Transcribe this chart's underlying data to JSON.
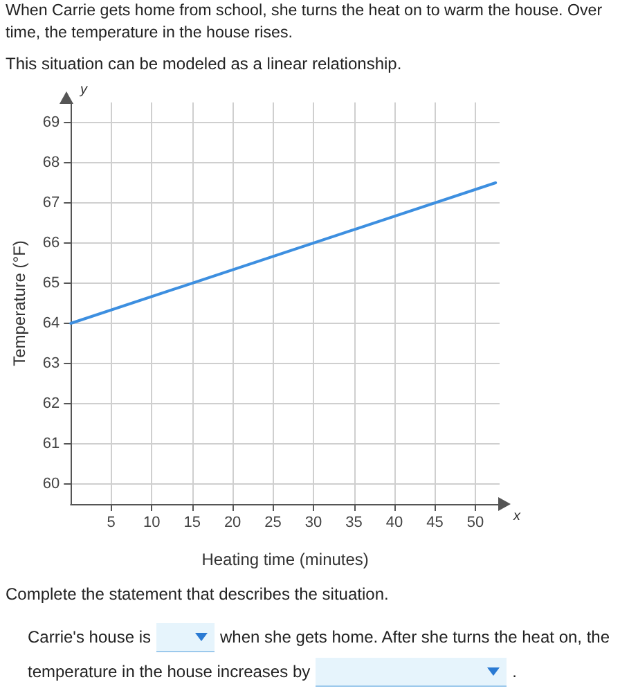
{
  "chart_data": {
    "type": "line",
    "xlabel": "Heating time (minutes)",
    "ylabel": "Temperature (°F)",
    "annotations": [
      "When Carrie gets home from school, she turns the heat on to warm the house. Over time, the temperature in the house rises.",
      "This situation can be modeled as a linear relationship.",
      "y",
      "x",
      "Complete the statement that describes the situation.",
      "Carrie's house is",
      "when she gets home. After she turns the heat on, the",
      "temperature in the house increases by",
      "."
    ],
    "series": [
      {
        "x": [
          0,
          52.5
        ],
        "values": [
          64,
          67.5
        ],
        "color": "#3d8fe0"
      }
    ],
    "xlim": [
      0,
      53
    ],
    "xticks": [
      5,
      10,
      15,
      20,
      25,
      30,
      35,
      40,
      45,
      50
    ],
    "ylim": [
      59.5,
      69.5
    ],
    "yticks": [
      60,
      61,
      62,
      63,
      64,
      65,
      66,
      67,
      68,
      69
    ],
    "grid": true,
    "marker": "none",
    "line_style": "solid"
  }
}
